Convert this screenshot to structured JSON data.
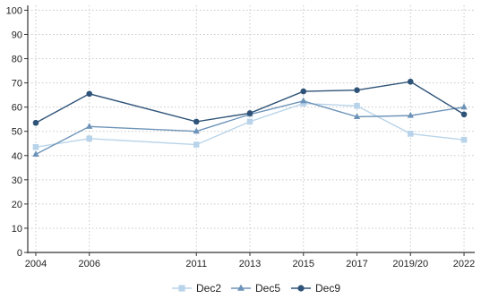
{
  "chart_data": {
    "type": "line",
    "title": "",
    "xlabel": "",
    "ylabel": "",
    "categories": [
      "2004",
      "2006",
      "2011",
      "2013",
      "2015",
      "2017",
      "2019/20",
      "2022"
    ],
    "x_positions": [
      2004,
      2006,
      2010,
      2012,
      2014,
      2016,
      2018,
      2020
    ],
    "x_ticks": [
      2004,
      2006,
      2010,
      2012,
      2014,
      2016,
      2018,
      2020
    ],
    "ylim": [
      0,
      102
    ],
    "y_ticks": [
      0,
      10,
      20,
      30,
      40,
      50,
      60,
      70,
      80,
      90,
      100
    ],
    "grid": true,
    "legend_position": "bottom-center",
    "series": [
      {
        "name": "Dec2",
        "color": "#b9d4ea",
        "marker": "square",
        "values": [
          43.5,
          47,
          44.5,
          54,
          61.5,
          60.5,
          49,
          46.5
        ]
      },
      {
        "name": "Dec5",
        "color": "#6d93b8",
        "marker": "triangle",
        "values": [
          40.5,
          52,
          50,
          57,
          62.5,
          56,
          56.5,
          60
        ]
      },
      {
        "name": "Dec9",
        "color": "#2f5378",
        "marker": "circle",
        "values": [
          53.5,
          65.5,
          54,
          57.5,
          66.5,
          67,
          70.5,
          57
        ]
      }
    ]
  }
}
